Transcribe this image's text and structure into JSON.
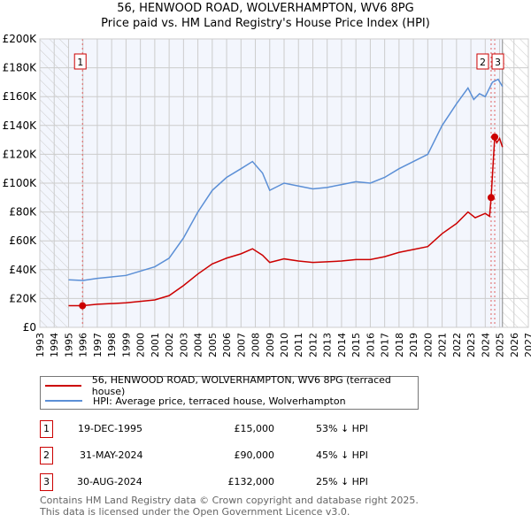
{
  "title": "56, HENWOOD ROAD, WOLVERHAMPTON, WV6 8PG",
  "subtitle": "Price paid vs. HM Land Registry's House Price Index (HPI)",
  "chart_data": {
    "type": "line",
    "xlim": [
      1993,
      2027
    ],
    "ylim": [
      0,
      200000
    ],
    "x_ticks": [
      "1993",
      "1994",
      "1995",
      "1996",
      "1997",
      "1998",
      "1999",
      "2000",
      "2001",
      "2002",
      "2003",
      "2004",
      "2005",
      "2006",
      "2007",
      "2008",
      "2009",
      "2010",
      "2011",
      "2012",
      "2013",
      "2014",
      "2015",
      "2016",
      "2017",
      "2018",
      "2019",
      "2020",
      "2021",
      "2022",
      "2023",
      "2024",
      "2025",
      "2026",
      "2027"
    ],
    "y_ticks": [
      {
        "v": 0,
        "label": "£0"
      },
      {
        "v": 20000,
        "label": "£20K"
      },
      {
        "v": 40000,
        "label": "£40K"
      },
      {
        "v": 60000,
        "label": "£60K"
      },
      {
        "v": 80000,
        "label": "£80K"
      },
      {
        "v": 100000,
        "label": "£100K"
      },
      {
        "v": 120000,
        "label": "£120K"
      },
      {
        "v": 140000,
        "label": "£140K"
      },
      {
        "v": 160000,
        "label": "£160K"
      },
      {
        "v": 180000,
        "label": "£180K"
      },
      {
        "v": 200000,
        "label": "£200K"
      }
    ],
    "hatched_before": 1995,
    "hatched_after": 2025.2,
    "series": [
      {
        "name": "56, HENWOOD ROAD, WOLVERHAMPTON, WV6 8PG (terraced house)",
        "color": "#cc0000",
        "points": [
          [
            1995,
            15000
          ],
          [
            1995.97,
            15000
          ],
          [
            1997,
            16000
          ],
          [
            1999,
            17000
          ],
          [
            2001,
            19000
          ],
          [
            2002,
            22000
          ],
          [
            2003,
            29000
          ],
          [
            2004,
            37000
          ],
          [
            2005,
            44000
          ],
          [
            2006,
            48000
          ],
          [
            2007,
            51000
          ],
          [
            2007.8,
            54500
          ],
          [
            2008.5,
            50000
          ],
          [
            2009,
            45000
          ],
          [
            2010,
            47500
          ],
          [
            2011,
            46000
          ],
          [
            2012,
            45000
          ],
          [
            2013,
            45500
          ],
          [
            2014,
            46000
          ],
          [
            2015,
            47000
          ],
          [
            2016,
            47000
          ],
          [
            2017,
            49000
          ],
          [
            2018,
            52000
          ],
          [
            2019,
            54000
          ],
          [
            2020,
            56000
          ],
          [
            2021,
            65000
          ],
          [
            2022,
            72000
          ],
          [
            2022.8,
            80000
          ],
          [
            2023.3,
            76000
          ],
          [
            2024,
            79000
          ],
          [
            2024.3,
            77000
          ],
          [
            2024.41,
            90000
          ],
          [
            2024.66,
            132000
          ],
          [
            2024.8,
            128000
          ],
          [
            2025,
            131000
          ],
          [
            2025.2,
            125000
          ]
        ]
      },
      {
        "name": "HPI: Average price, terraced house, Wolverhampton",
        "color": "#5b8fd6",
        "points": [
          [
            1995,
            33000
          ],
          [
            1996,
            32500
          ],
          [
            1997,
            34000
          ],
          [
            1998,
            35000
          ],
          [
            1999,
            36000
          ],
          [
            2000,
            39000
          ],
          [
            2001,
            42000
          ],
          [
            2002,
            48000
          ],
          [
            2003,
            62000
          ],
          [
            2004,
            80000
          ],
          [
            2005,
            95000
          ],
          [
            2006,
            104000
          ],
          [
            2007,
            110000
          ],
          [
            2007.8,
            115000
          ],
          [
            2008.5,
            107000
          ],
          [
            2009,
            95000
          ],
          [
            2010,
            100000
          ],
          [
            2011,
            98000
          ],
          [
            2012,
            96000
          ],
          [
            2013,
            97000
          ],
          [
            2014,
            99000
          ],
          [
            2015,
            101000
          ],
          [
            2016,
            100000
          ],
          [
            2017,
            104000
          ],
          [
            2018,
            110000
          ],
          [
            2019,
            115000
          ],
          [
            2020,
            120000
          ],
          [
            2021,
            140000
          ],
          [
            2022,
            155000
          ],
          [
            2022.8,
            166000
          ],
          [
            2023.2,
            158000
          ],
          [
            2023.6,
            162000
          ],
          [
            2024,
            160000
          ],
          [
            2024.5,
            170000
          ],
          [
            2024.9,
            172000
          ],
          [
            2025.2,
            167000
          ]
        ]
      }
    ],
    "sales": [
      {
        "id": "1",
        "x": 1995.97,
        "y": 15000
      },
      {
        "id": "2",
        "x": 2024.41,
        "y": 90000
      },
      {
        "id": "3",
        "x": 2024.66,
        "y": 132000
      }
    ]
  },
  "legend": {
    "property": "56, HENWOOD ROAD, WOLVERHAMPTON, WV6 8PG (terraced house)",
    "hpi": "HPI: Average price, terraced house, Wolverhampton"
  },
  "transactions": [
    {
      "id": "1",
      "date": "19-DEC-1995",
      "price": "£15,000",
      "delta": "53% ↓ HPI"
    },
    {
      "id": "2",
      "date": "31-MAY-2024",
      "price": "£90,000",
      "delta": "45% ↓ HPI"
    },
    {
      "id": "3",
      "date": "30-AUG-2024",
      "price": "£132,000",
      "delta": "25% ↓ HPI"
    }
  ],
  "footer": {
    "line1": "Contains HM Land Registry data © Crown copyright and database right 2025.",
    "line2": "This data is licensed under the Open Government Licence v3.0."
  }
}
